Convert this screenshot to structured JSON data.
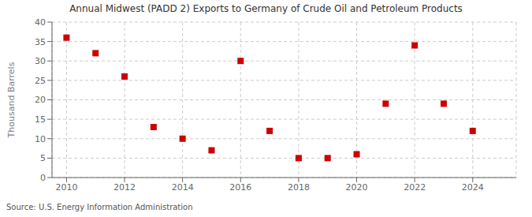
{
  "chart_data": {
    "type": "scatter",
    "title": "Annual Midwest (PADD 2) Exports to Germany of Crude Oil and Petroleum Products",
    "ylabel": "Thousand Barrels",
    "annotations": [
      "Source: U.S. Energy Information Administration"
    ],
    "x": [
      2010,
      2011,
      2012,
      2013,
      2014,
      2015,
      2016,
      2017,
      2018,
      2019,
      2020,
      2021,
      2022,
      2023,
      2024
    ],
    "values": [
      36,
      32,
      26,
      13,
      10,
      7,
      30,
      12,
      5,
      5,
      6,
      19,
      34,
      19,
      12
    ],
    "color": "#cc0000",
    "marker": "square",
    "xlim": [
      2009.5,
      2025.5
    ],
    "ylim": [
      0,
      40
    ],
    "xticks": [
      2010,
      2012,
      2014,
      2016,
      2018,
      2020,
      2022,
      2024
    ],
    "yticks": [
      0,
      5,
      10,
      15,
      20,
      25,
      30,
      35,
      40
    ],
    "grid": true
  }
}
